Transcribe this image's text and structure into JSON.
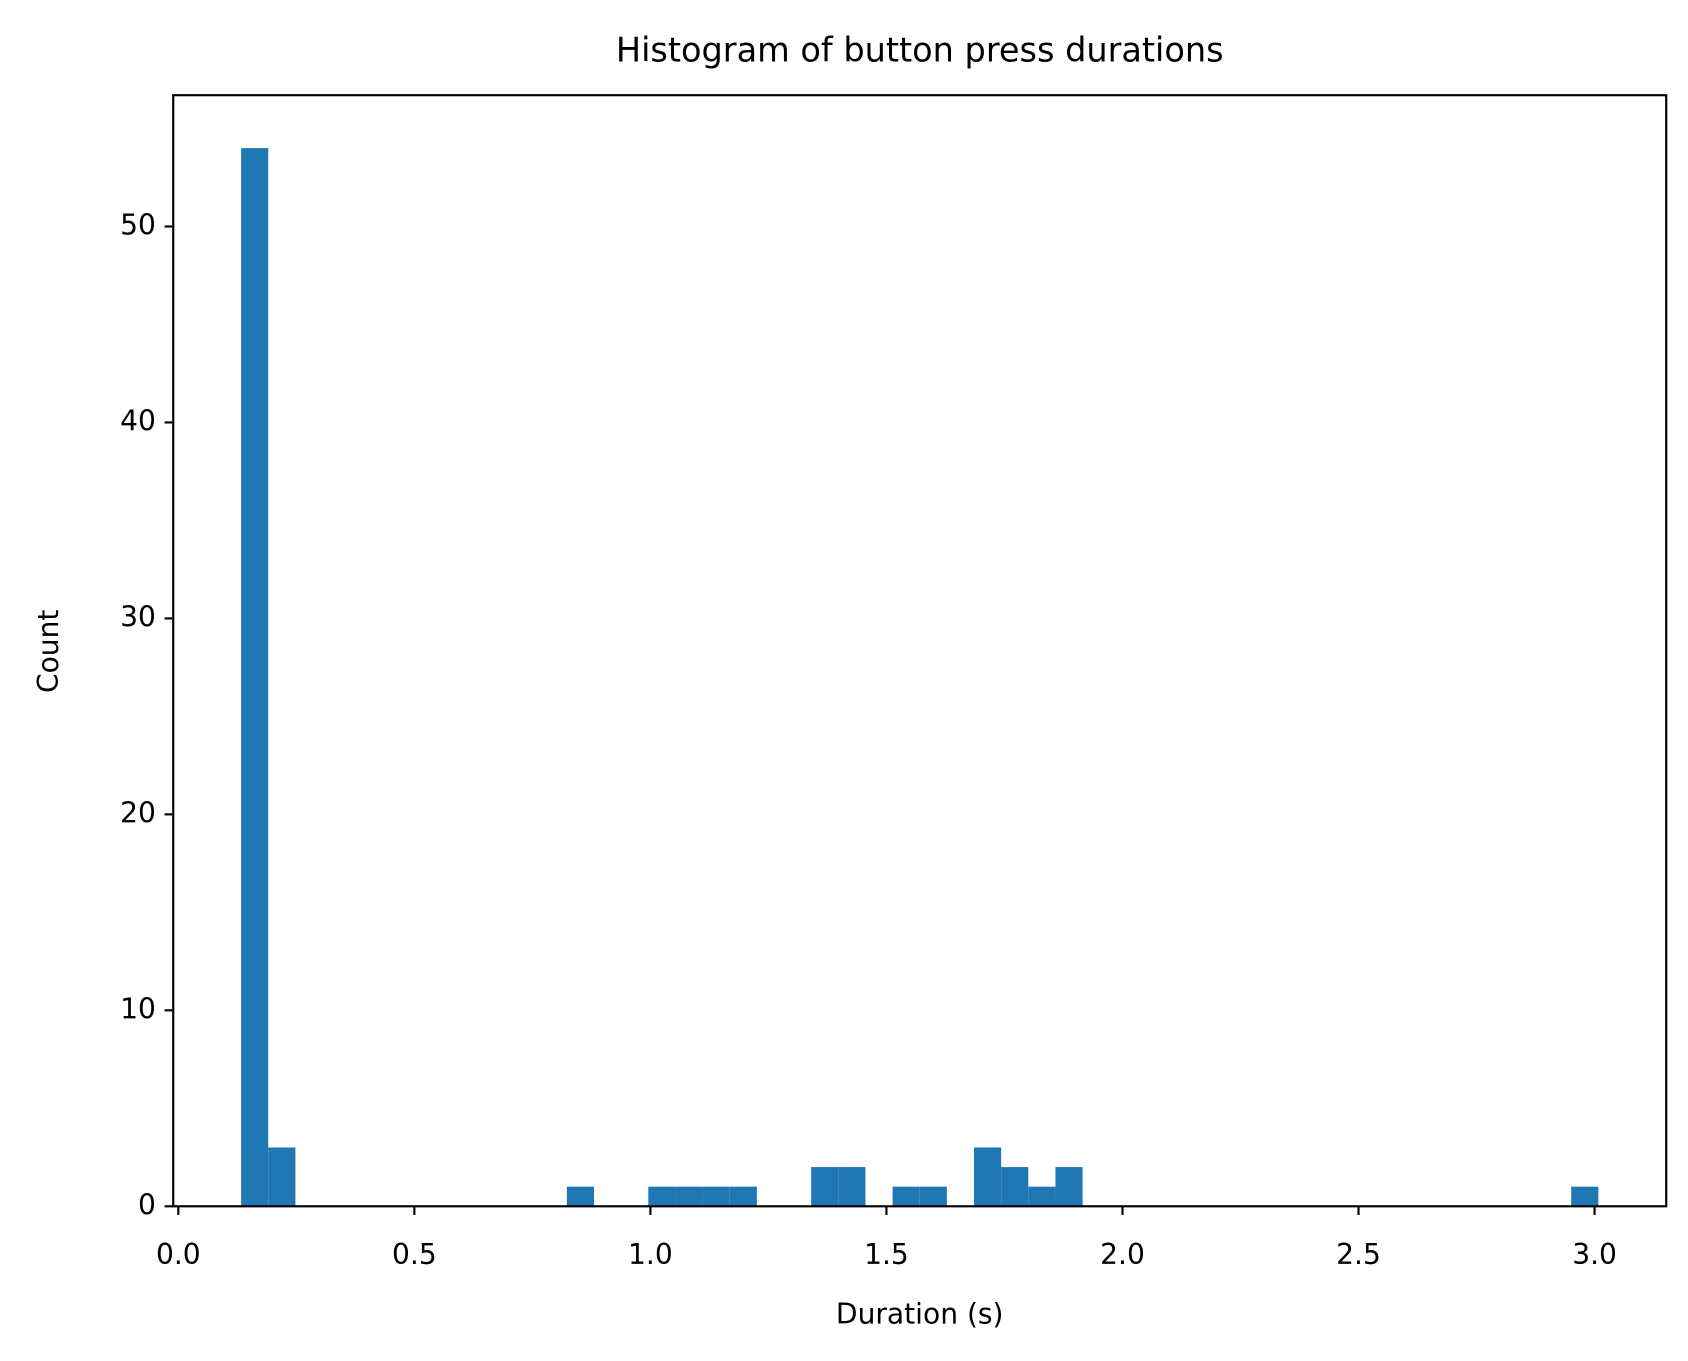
{
  "chart_data": {
    "type": "histogram",
    "title": "Histogram of button press durations",
    "x_label": "Duration (s)",
    "y_label": "Count",
    "bins": [
      0.133,
      0.1905,
      0.248,
      0.3055,
      0.363,
      0.4205,
      0.478,
      0.5355,
      0.593,
      0.6505,
      0.708,
      0.7655,
      0.823,
      0.8805,
      0.938,
      0.9955,
      1.053,
      1.1105,
      1.168,
      1.2255,
      1.283,
      1.3405,
      1.398,
      1.4555,
      1.513,
      1.5705,
      1.628,
      1.6855,
      1.743,
      1.8005,
      1.858,
      1.9155,
      1.973,
      2.0305,
      2.088,
      2.1455,
      2.203,
      2.2605,
      2.318,
      2.3755,
      2.433,
      2.4905,
      2.548,
      2.6055,
      2.663,
      2.7205,
      2.778,
      2.8355,
      2.893,
      2.9505,
      3.008
    ],
    "values": [
      54,
      3,
      0,
      0,
      0,
      0,
      0,
      0,
      0,
      0,
      0,
      0,
      1,
      0,
      0,
      1,
      1,
      1,
      1,
      0,
      0,
      2,
      2,
      0,
      1,
      1,
      0,
      3,
      2,
      1,
      2,
      0,
      0,
      0,
      0,
      0,
      0,
      0,
      0,
      0,
      0,
      0,
      0,
      0,
      0,
      0,
      0,
      0,
      0,
      1
    ],
    "color": "#1f77b4",
    "xlim": [
      -0.0108,
      3.1518
    ],
    "xticks": [
      {
        "value": 0,
        "label": "0.0"
      },
      0.5,
      {
        "value": 1,
        "label": "1.0"
      },
      1.5,
      {
        "value": 2,
        "label": "2.0"
      },
      2.5,
      {
        "value": 3,
        "label": "3.0"
      }
    ],
    "ylim": [
      0,
      56.7
    ],
    "yticks": [
      0,
      10,
      20,
      30,
      40,
      50
    ],
    "grid": false
  }
}
